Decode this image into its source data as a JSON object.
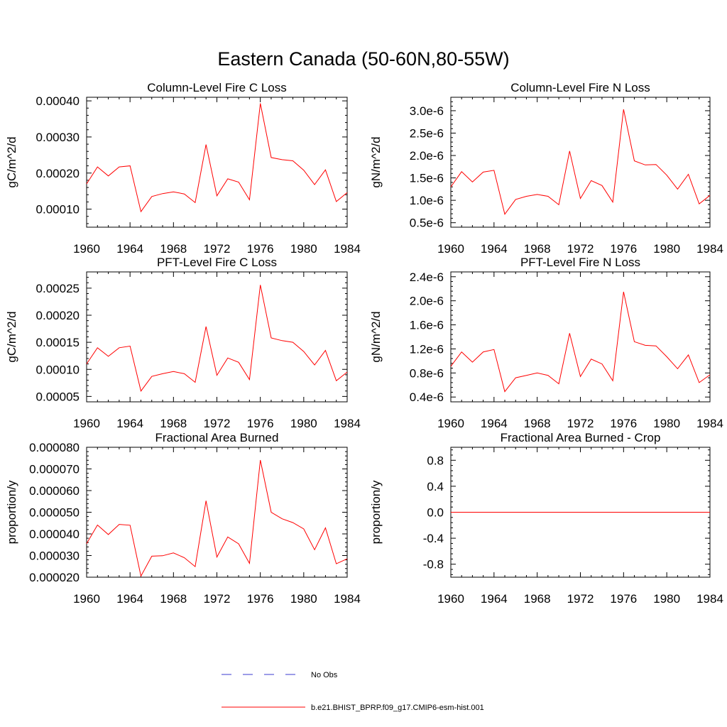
{
  "figure": {
    "title": "Eastern Canada (50-60N,80-55W)"
  },
  "legend": {
    "items": [
      {
        "label": "No Obs",
        "color": "#3b3bd1",
        "dash": "dashed"
      },
      {
        "label": "b.e21.BHIST_BPRP.f09_g17.CMIP6-esm-hist.001",
        "color": "#ff0000",
        "dash": "solid"
      }
    ]
  },
  "chart_data": [
    {
      "type": "line",
      "title": "Column-Level Fire C Loss",
      "ylabel": "gC/m^2/d",
      "xlim": [
        1960,
        1984
      ],
      "ylim": [
        5e-05,
        0.00041
      ],
      "xticks": [
        1960,
        1964,
        1968,
        1972,
        1976,
        1980,
        1984
      ],
      "yticks": [
        0.0001,
        0.0002,
        0.0003,
        0.0004
      ],
      "ytick_labels": [
        "0.00010",
        "0.00020",
        "0.00030",
        "0.00040"
      ],
      "series": [
        {
          "color": "#ff0000",
          "x": [
            1960,
            1961,
            1962,
            1963,
            1964,
            1965,
            1966,
            1967,
            1968,
            1969,
            1970,
            1971,
            1972,
            1973,
            1974,
            1975,
            1976,
            1977,
            1978,
            1979,
            1980,
            1981,
            1982,
            1983,
            1984
          ],
          "y": [
            0.00017,
            0.000217,
            0.000192,
            0.000217,
            0.00022,
            9.3e-05,
            0.000135,
            0.000143,
            0.000148,
            0.000142,
            0.000118,
            0.000279,
            0.000137,
            0.000184,
            0.000175,
            0.000126,
            0.000393,
            0.000243,
            0.000237,
            0.000234,
            0.000208,
            0.000168,
            0.000209,
            0.000121,
            0.000146
          ]
        }
      ]
    },
    {
      "type": "line",
      "title": "Column-Level Fire N Loss",
      "ylabel": "gN/m^2/d",
      "xlim": [
        1960,
        1984
      ],
      "ylim": [
        4e-07,
        3.3e-06
      ],
      "xticks": [
        1960,
        1964,
        1968,
        1972,
        1976,
        1980,
        1984
      ],
      "yticks": [
        5e-07,
        1e-06,
        1.5e-06,
        2e-06,
        2.5e-06,
        3e-06
      ],
      "ytick_labels": [
        "0.5e-6",
        "1.0e-6",
        "1.5e-6",
        "2.0e-6",
        "2.5e-6",
        "3.0e-6"
      ],
      "series": [
        {
          "color": "#ff0000",
          "x": [
            1960,
            1961,
            1962,
            1963,
            1964,
            1965,
            1966,
            1967,
            1968,
            1969,
            1970,
            1971,
            1972,
            1973,
            1974,
            1975,
            1976,
            1977,
            1978,
            1979,
            1980,
            1981,
            1982,
            1983,
            1984
          ],
          "y": [
            1.3e-06,
            1.64e-06,
            1.41e-06,
            1.63e-06,
            1.67e-06,
            6.9e-07,
            1.02e-06,
            1.09e-06,
            1.13e-06,
            1.09e-06,
            9e-07,
            2.1e-06,
            1.04e-06,
            1.44e-06,
            1.33e-06,
            9.6e-07,
            3.03e-06,
            1.88e-06,
            1.79e-06,
            1.8e-06,
            1.56e-06,
            1.25e-06,
            1.58e-06,
            9.2e-07,
            1.11e-06
          ]
        }
      ]
    },
    {
      "type": "line",
      "title": "PFT-Level Fire C Loss",
      "ylabel": "gC/m^2/d",
      "xlim": [
        1960,
        1984
      ],
      "ylim": [
        4e-05,
        0.00028
      ],
      "xticks": [
        1960,
        1964,
        1968,
        1972,
        1976,
        1980,
        1984
      ],
      "yticks": [
        5e-05,
        0.0001,
        0.00015,
        0.0002,
        0.00025
      ],
      "ytick_labels": [
        "0.00005",
        "0.00010",
        "0.00015",
        "0.00020",
        "0.00025"
      ],
      "series": [
        {
          "color": "#ff0000",
          "x": [
            1960,
            1961,
            1962,
            1963,
            1964,
            1965,
            1966,
            1967,
            1968,
            1969,
            1970,
            1971,
            1972,
            1973,
            1974,
            1975,
            1976,
            1977,
            1978,
            1979,
            1980,
            1981,
            1982,
            1983,
            1984
          ],
          "y": [
            0.00011,
            0.00014,
            0.000124,
            0.00014,
            0.000143,
            6e-05,
            8.7e-05,
            9.2e-05,
            9.6e-05,
            9.2e-05,
            7.6e-05,
            0.000179,
            8.9e-05,
            0.000121,
            0.000113,
            8.1e-05,
            0.000256,
            0.000158,
            0.000153,
            0.00015,
            0.000133,
            0.000108,
            0.000135,
            7.9e-05,
            9.5e-05
          ]
        }
      ]
    },
    {
      "type": "line",
      "title": "PFT-Level Fire N Loss",
      "ylabel": "gN/m^2/d",
      "xlim": [
        1960,
        1984
      ],
      "ylim": [
        3.2e-07,
        2.48e-06
      ],
      "xticks": [
        1960,
        1964,
        1968,
        1972,
        1976,
        1980,
        1984
      ],
      "yticks": [
        4e-07,
        8e-07,
        1.2e-06,
        1.6e-06,
        2e-06,
        2.4e-06
      ],
      "ytick_labels": [
        "0.4e-6",
        "0.8e-6",
        "1.2e-6",
        "1.6e-6",
        "2.0e-6",
        "2.4e-6"
      ],
      "series": [
        {
          "color": "#ff0000",
          "x": [
            1960,
            1961,
            1962,
            1963,
            1964,
            1965,
            1966,
            1967,
            1968,
            1969,
            1970,
            1971,
            1972,
            1973,
            1974,
            1975,
            1976,
            1977,
            1978,
            1979,
            1980,
            1981,
            1982,
            1983,
            1984
          ],
          "y": [
            9.1e-07,
            1.15e-06,
            9.8e-07,
            1.15e-06,
            1.19e-06,
            4.9e-07,
            7.2e-07,
            7.6e-07,
            8e-07,
            7.6e-07,
            6.2e-07,
            1.46e-06,
            7.4e-07,
            1.03e-06,
            9.5e-07,
            6.7e-07,
            2.15e-06,
            1.32e-06,
            1.26e-06,
            1.25e-06,
            1.07e-06,
            8.7e-07,
            1.1e-06,
            6.4e-07,
            7.7e-07
          ]
        }
      ]
    },
    {
      "type": "line",
      "title": "Fractional Area Burned",
      "ylabel": "proportion/y",
      "xlim": [
        1960,
        1984
      ],
      "ylim": [
        2e-05,
        8e-05
      ],
      "xticks": [
        1960,
        1964,
        1968,
        1972,
        1976,
        1980,
        1984
      ],
      "yticks": [
        2e-05,
        3e-05,
        4e-05,
        5e-05,
        6e-05,
        7e-05,
        8e-05
      ],
      "ytick_labels": [
        "0.000020",
        "0.000030",
        "0.000040",
        "0.000050",
        "0.000060",
        "0.000070",
        "0.000080"
      ],
      "series": [
        {
          "color": "#ff0000",
          "x": [
            1960,
            1961,
            1962,
            1963,
            1964,
            1965,
            1966,
            1967,
            1968,
            1969,
            1970,
            1971,
            1972,
            1973,
            1974,
            1975,
            1976,
            1977,
            1978,
            1979,
            1980,
            1981,
            1982,
            1983,
            1984
          ],
          "y": [
            3.55e-05,
            4.41e-05,
            3.97e-05,
            4.44e-05,
            4.4e-05,
            2.05e-05,
            2.97e-05,
            2.99e-05,
            3.12e-05,
            2.9e-05,
            2.49e-05,
            5.53e-05,
            2.93e-05,
            3.86e-05,
            3.54e-05,
            2.64e-05,
            7.41e-05,
            5e-05,
            4.7e-05,
            4.52e-05,
            4.23e-05,
            3.27e-05,
            4.28e-05,
            2.62e-05,
            2.85e-05
          ]
        }
      ]
    },
    {
      "type": "line",
      "title": "Fractional Area Burned - Crop",
      "ylabel": "proportion/y",
      "xlim": [
        1960,
        1984
      ],
      "ylim": [
        -1.0,
        1.0
      ],
      "xticks": [
        1960,
        1964,
        1968,
        1972,
        1976,
        1980,
        1984
      ],
      "yticks": [
        -0.8,
        -0.4,
        0.0,
        0.4,
        0.8
      ],
      "ytick_labels": [
        "-0.8",
        "-0.4",
        "0.0",
        "0.4",
        "0.8"
      ],
      "series": [
        {
          "color": "#ff0000",
          "x": [
            1960,
            1961,
            1962,
            1963,
            1964,
            1965,
            1966,
            1967,
            1968,
            1969,
            1970,
            1971,
            1972,
            1973,
            1974,
            1975,
            1976,
            1977,
            1978,
            1979,
            1980,
            1981,
            1982,
            1983,
            1984
          ],
          "y": [
            0,
            0,
            0,
            0,
            0,
            0,
            0,
            0,
            0,
            0,
            0,
            0,
            0,
            0,
            0,
            0,
            0,
            0,
            0,
            0,
            0,
            0,
            0,
            0,
            0
          ]
        }
      ]
    }
  ]
}
